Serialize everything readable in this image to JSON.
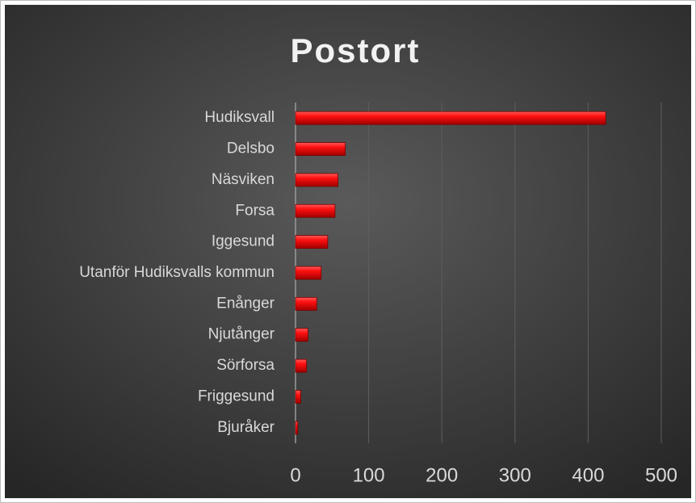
{
  "chart_data": {
    "type": "bar",
    "orientation": "horizontal",
    "title": "Postort",
    "categories": [
      "Hudiksvall",
      "Delsbo",
      "Näsviken",
      "Forsa",
      "Iggesund",
      "Utanför Hudiksvalls kommun",
      "Enånger",
      "Njutånger",
      "Sörforsa",
      "Friggesund",
      "Bjuråker"
    ],
    "values": [
      424,
      68,
      58,
      54,
      44,
      35,
      29,
      17,
      15,
      7,
      3
    ],
    "color": "#e00000",
    "xlim": [
      0,
      500
    ],
    "xticks": [
      0,
      100,
      200,
      300,
      400,
      500
    ],
    "grid": true
  }
}
